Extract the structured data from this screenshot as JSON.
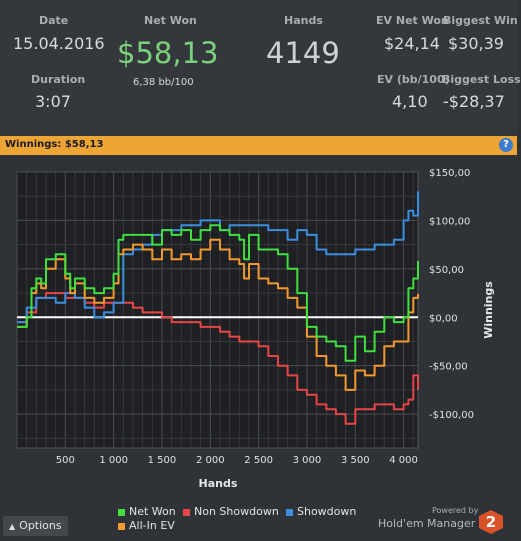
{
  "stats": {
    "date_label": "Date",
    "date_value": "15.04.2016",
    "duration_label": "Duration",
    "duration_value": "3:07",
    "net_won_label": "Net Won",
    "net_won_value": "$58,13",
    "bb_per_100": "6,38 bb/100",
    "hands_label": "Hands",
    "hands_value": "4149",
    "ev_net_won_label": "EV Net Won",
    "ev_net_won_value": "$24,14",
    "ev_bb_label": "EV (bb/100)",
    "ev_bb_value": "4,10",
    "biggest_win_label": "Biggest Win",
    "biggest_win_value": "$30,39",
    "biggest_loss_label": "Biggest Loss",
    "biggest_loss_value": "-$28,37"
  },
  "colors": {
    "net_won_text": "#7cd27c",
    "bar": "#eda536",
    "net_won": "#3fe03f",
    "non_showdown": "#e84646",
    "showdown": "#3a8fe0",
    "allin_ev": "#f39a2e"
  },
  "winnings_bar": {
    "text": "Winnings: $58,13",
    "help_icon": "?"
  },
  "options_button": {
    "label": "Options",
    "icon": "triangle-up-icon"
  },
  "branding": {
    "powered_by": "Powered by",
    "name": "Hold'em Manager",
    "version": "2"
  },
  "chart_data": {
    "type": "line",
    "xlabel": "Hands",
    "ylabel": "Winnings",
    "xlim": [
      0,
      4149
    ],
    "ylim": [
      -135,
      150
    ],
    "x_ticks": [
      500,
      1000,
      1500,
      2000,
      2500,
      3000,
      3500,
      4000
    ],
    "x_tick_labels": [
      "500",
      "1 000",
      "1 500",
      "2 000",
      "2 500",
      "3 000",
      "3 500",
      "4 000"
    ],
    "y_ticks": [
      150,
      100,
      50,
      0,
      -50,
      -100
    ],
    "y_tick_labels": [
      "$150,00",
      "$100,00",
      "$50,00",
      "$0,00",
      "-$50,00",
      "-$100,00"
    ],
    "grid": true,
    "legend_position": "bottom",
    "series": [
      {
        "name": "Net Won",
        "color": "#3fe03f",
        "x": [
          0,
          100,
          150,
          200,
          250,
          300,
          400,
          500,
          550,
          600,
          700,
          800,
          900,
          950,
          1000,
          1050,
          1100,
          1200,
          1300,
          1400,
          1500,
          1600,
          1700,
          1800,
          1900,
          2000,
          2100,
          2200,
          2300,
          2350,
          2400,
          2500,
          2600,
          2700,
          2800,
          2900,
          3000,
          3100,
          3200,
          3300,
          3400,
          3500,
          3600,
          3700,
          3800,
          3900,
          4000,
          4050,
          4100,
          4149
        ],
        "y": [
          -10,
          0,
          30,
          40,
          35,
          60,
          65,
          45,
          30,
          40,
          30,
          25,
          30,
          30,
          45,
          80,
          85,
          85,
          85,
          75,
          90,
          85,
          90,
          80,
          90,
          95,
          90,
          85,
          80,
          60,
          85,
          70,
          70,
          65,
          50,
          25,
          -10,
          -20,
          -25,
          -30,
          -45,
          -20,
          -35,
          -15,
          0,
          -5,
          0,
          30,
          40,
          58.13
        ]
      },
      {
        "name": "Non Showdown",
        "color": "#e84646",
        "x": [
          0,
          100,
          200,
          300,
          400,
          500,
          600,
          700,
          800,
          900,
          1000,
          1100,
          1200,
          1300,
          1400,
          1500,
          1600,
          1700,
          1800,
          1900,
          2000,
          2100,
          2200,
          2300,
          2400,
          2500,
          2600,
          2700,
          2800,
          2900,
          3000,
          3100,
          3200,
          3300,
          3400,
          3500,
          3600,
          3700,
          3800,
          3900,
          4000,
          4050,
          4100,
          4149
        ],
        "y": [
          -5,
          5,
          20,
          25,
          25,
          20,
          20,
          15,
          10,
          15,
          15,
          15,
          10,
          5,
          5,
          0,
          -5,
          -5,
          -5,
          -10,
          -10,
          -15,
          -20,
          -25,
          -25,
          -30,
          -40,
          -50,
          -60,
          -75,
          -80,
          -90,
          -95,
          -100,
          -110,
          -95,
          -95,
          -90,
          -90,
          -95,
          -90,
          -85,
          -60,
          -75
        ]
      },
      {
        "name": "Showdown",
        "color": "#3a8fe0",
        "x": [
          0,
          100,
          200,
          300,
          400,
          500,
          600,
          700,
          800,
          900,
          1000,
          1100,
          1200,
          1300,
          1400,
          1500,
          1600,
          1700,
          1800,
          1900,
          2000,
          2100,
          2200,
          2300,
          2400,
          2500,
          2600,
          2700,
          2800,
          2900,
          3000,
          3100,
          3200,
          3300,
          3400,
          3500,
          3600,
          3700,
          3800,
          3900,
          4000,
          4050,
          4100,
          4149
        ],
        "y": [
          -5,
          10,
          20,
          20,
          15,
          25,
          20,
          10,
          0,
          5,
          15,
          65,
          70,
          75,
          85,
          90,
          90,
          95,
          95,
          100,
          100,
          90,
          95,
          95,
          95,
          95,
          90,
          90,
          80,
          90,
          85,
          70,
          65,
          65,
          65,
          70,
          70,
          75,
          75,
          80,
          100,
          110,
          105,
          130
        ]
      },
      {
        "name": "All-In EV",
        "color": "#f39a2e",
        "x": [
          0,
          100,
          150,
          200,
          250,
          300,
          400,
          500,
          550,
          600,
          700,
          800,
          900,
          950,
          1000,
          1050,
          1100,
          1200,
          1300,
          1400,
          1500,
          1600,
          1700,
          1800,
          1900,
          2000,
          2100,
          2200,
          2300,
          2350,
          2400,
          2500,
          2600,
          2700,
          2800,
          2900,
          3000,
          3100,
          3200,
          3300,
          3400,
          3500,
          3600,
          3700,
          3800,
          3900,
          4000,
          4050,
          4100,
          4149
        ],
        "y": [
          -10,
          0,
          25,
          35,
          30,
          50,
          60,
          40,
          25,
          35,
          20,
          15,
          20,
          20,
          35,
          65,
          70,
          75,
          70,
          60,
          70,
          60,
          65,
          60,
          70,
          80,
          70,
          60,
          55,
          40,
          55,
          40,
          35,
          30,
          20,
          10,
          -20,
          -40,
          -50,
          -60,
          -75,
          -55,
          -60,
          -50,
          -30,
          -25,
          -25,
          5,
          20,
          24.14
        ]
      }
    ]
  }
}
